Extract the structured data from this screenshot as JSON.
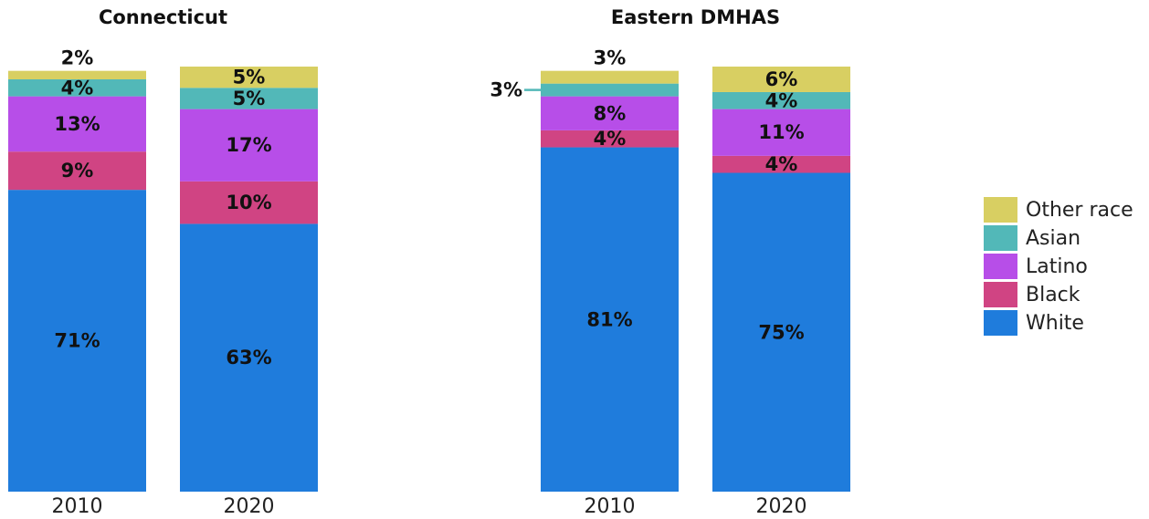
{
  "chart_data": [
    {
      "type": "bar",
      "stacked": true,
      "title": "Connecticut",
      "categories": [
        "2010",
        "2020"
      ],
      "ylim": [
        0,
        100
      ],
      "series": [
        {
          "name": "White",
          "color": "#1f7cdc",
          "values": [
            71,
            63
          ],
          "value_labels": [
            "71%",
            "63%"
          ]
        },
        {
          "name": "Black",
          "color": "#d04483",
          "values": [
            9,
            10
          ],
          "value_labels": [
            "9%",
            "10%"
          ]
        },
        {
          "name": "Latino",
          "color": "#b74ee8",
          "values": [
            13,
            17
          ],
          "value_labels": [
            "13%",
            "17%"
          ]
        },
        {
          "name": "Asian",
          "color": "#52b8b8",
          "values": [
            4,
            5
          ],
          "value_labels": [
            "4%",
            "5%"
          ]
        },
        {
          "name": "Other race",
          "color": "#d8cf62",
          "values": [
            2,
            5
          ],
          "value_labels": [
            "2%",
            "5%"
          ]
        }
      ]
    },
    {
      "type": "bar",
      "stacked": true,
      "title": "Eastern DMHAS",
      "categories": [
        "2010",
        "2020"
      ],
      "ylim": [
        0,
        100
      ],
      "series": [
        {
          "color": "#1f7cdc",
          "values": [
            81,
            75
          ],
          "value_labels": [
            "81%",
            "75%"
          ]
        },
        {
          "color": "#d04483",
          "values": [
            4,
            4
          ],
          "value_labels": [
            "4%",
            "4%"
          ]
        },
        {
          "color": "#b74ee8",
          "values": [
            8,
            11
          ],
          "value_labels": [
            "8%",
            "11%"
          ]
        },
        {
          "color": "#52b8b8",
          "values": [
            3,
            4
          ],
          "value_labels": [
            "3%",
            "4%"
          ]
        },
        {
          "color": "#d8cf62",
          "values": [
            3,
            6
          ],
          "value_labels": [
            "3%",
            "6%"
          ]
        }
      ]
    }
  ]
}
